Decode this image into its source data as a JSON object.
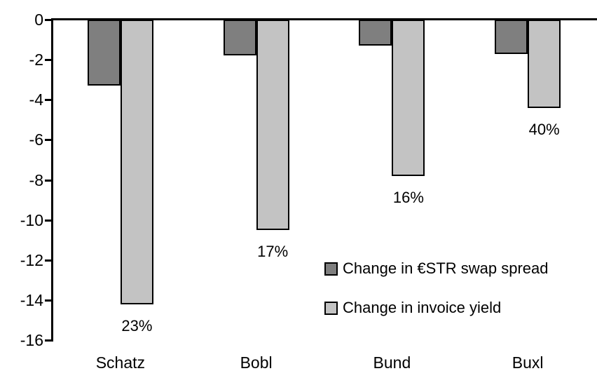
{
  "chart_data": {
    "type": "bar",
    "title": "",
    "xlabel": "",
    "ylabel": "",
    "categories": [
      "Schatz",
      "Bobl",
      "Bund",
      "Buxl"
    ],
    "series": [
      {
        "name": "Change in €STR swap spread",
        "color": "#7f7f7f",
        "values": [
          -3.3,
          -1.8,
          -1.3,
          -1.7
        ]
      },
      {
        "name": "Change in invoice yield",
        "color": "#c3c3c3",
        "values": [
          -14.2,
          -10.5,
          -7.8,
          -4.4
        ],
        "value_labels": [
          "23%",
          "17%",
          "16%",
          "40%"
        ]
      }
    ],
    "ylim": [
      -16,
      0
    ],
    "yticks": [
      0,
      -2,
      -4,
      -6,
      -8,
      -10,
      -12,
      -14,
      -16
    ],
    "grid": false,
    "legend_position": "inside-right",
    "bar_outline_color": "#000000",
    "axis_color": "#000000",
    "background_color": "#ffffff"
  }
}
